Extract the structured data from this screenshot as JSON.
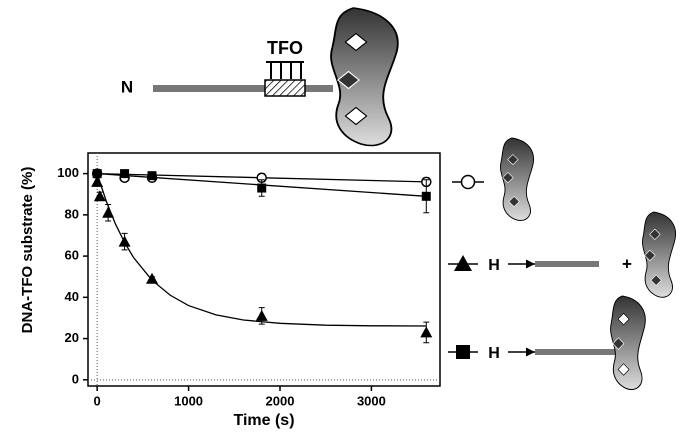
{
  "schematic": {
    "tfo_label": "TFO",
    "n_label": "N",
    "legend_h1": "H",
    "legend_plus": "+",
    "legend_h2": "H"
  },
  "chart_data": {
    "type": "scatter",
    "y_label": "DNA-TFO substrate (%)",
    "x_label": "Time (s)",
    "xlim": [
      -100,
      3750
    ],
    "xticks": [
      0,
      1000,
      2000,
      3000
    ],
    "ylim": [
      -3,
      110
    ],
    "yticks": [
      0,
      20,
      40,
      60,
      80,
      100
    ],
    "color": "#000000",
    "series": [
      {
        "marker": "circle",
        "x": [
          0,
          300,
          600,
          1800,
          3600
        ],
        "values": [
          100,
          98,
          98,
          98,
          96
        ],
        "errors": [
          1,
          1,
          1,
          2,
          2
        ],
        "fit": {
          "x": [
            0,
            3600
          ],
          "values": [
            100,
            96
          ]
        }
      },
      {
        "marker": "triangle",
        "x": [
          0,
          30,
          120,
          300,
          600,
          1800,
          3600
        ],
        "values": [
          96,
          89,
          81,
          67,
          49,
          31,
          23
        ],
        "errors": [
          2,
          2,
          4,
          4,
          1,
          4,
          5
        ],
        "fit": {
          "x": [
            0,
            100,
            200,
            300,
            400,
            600,
            800,
            1000,
            1300,
            1600,
            2000,
            2500,
            3000,
            3600
          ],
          "values": [
            100,
            86.6,
            75.6,
            66.6,
            59.2,
            48.3,
            41,
            36,
            31.5,
            29,
            27.4,
            26.5,
            26.2,
            26.1
          ]
        }
      },
      {
        "marker": "square",
        "x": [
          0,
          300,
          600,
          1800,
          3600
        ],
        "values": [
          100,
          100,
          99,
          93,
          89
        ],
        "errors": [
          1,
          1,
          1,
          4,
          8
        ],
        "fit": {
          "x": [
            0,
            3600
          ],
          "values": [
            100,
            89
          ]
        }
      }
    ]
  }
}
